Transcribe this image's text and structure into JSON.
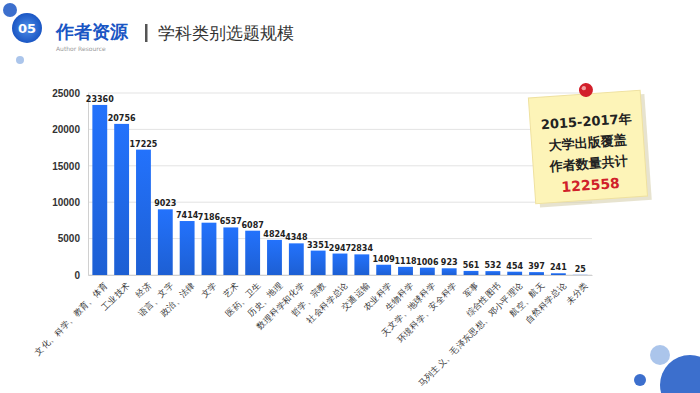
{
  "header": {
    "number": "05",
    "section": "作者资源",
    "section_en": "Author Resource"
  },
  "chart_data": {
    "type": "bar",
    "title": "学科类别选题规模",
    "categories": [
      "文化、科学、教育、体育",
      "工业技术",
      "经济",
      "语言、文字",
      "政治、法律",
      "文学",
      "艺术",
      "医药、卫生",
      "历史、地理",
      "数理科学和化学",
      "哲学、宗教",
      "社会科学总论",
      "交通运输",
      "农业科学",
      "生物科学",
      "天文学、地球科学",
      "环境科学、安全科学",
      "军事",
      "综合性图书",
      "马列主义、毛泽东思想、邓小平理论",
      "航空、航天",
      "自然科学总论",
      "未分类"
    ],
    "values": [
      23360,
      20756,
      17225,
      9023,
      7414,
      7186,
      6537,
      6087,
      4824,
      4348,
      3351,
      2947,
      2834,
      1409,
      1118,
      1006,
      923,
      561,
      532,
      454,
      397,
      241,
      25
    ],
    "color": "#1d5fd3",
    "ylim": [
      0,
      25000
    ],
    "yticks": [
      0,
      5000,
      10000,
      15000,
      20000,
      25000
    ],
    "grid": true,
    "data_labels": true,
    "annotation": {
      "lines": [
        "2015-2017年",
        "大学出版覆盖",
        "作者数量共计"
      ],
      "value": 122558
    }
  }
}
